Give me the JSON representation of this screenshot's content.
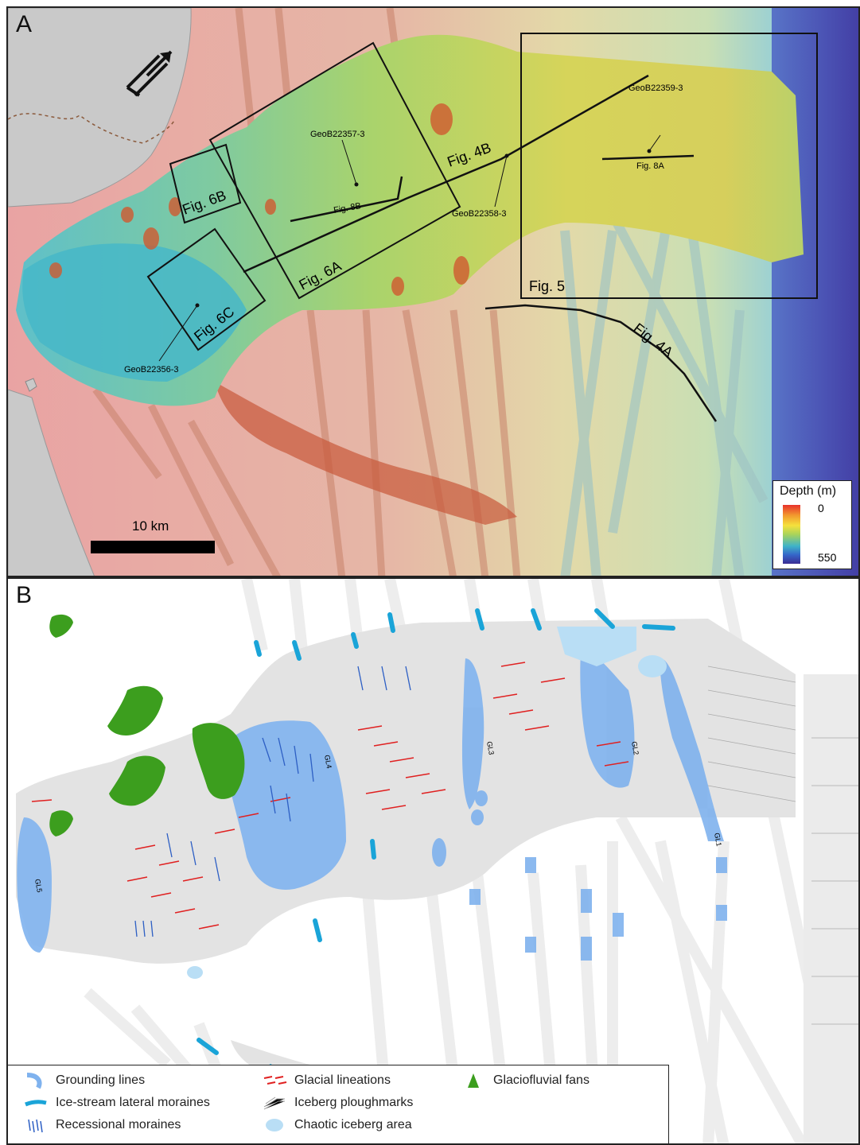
{
  "panelA": {
    "letter": "A",
    "figure_labels": {
      "fig6b": "Fig. 6B",
      "fig6a": "Fig. 6A",
      "fig6c": "Fig. 6C",
      "fig4b": "Fig. 4B",
      "fig5": "Fig. 5",
      "fig4a": "Fig. 4A",
      "fig8a": "Fig. 8A",
      "fig8b": "Fig. 8B"
    },
    "cores": {
      "c1": "GeoB22357-3",
      "c2": "GeoB22359-3",
      "c3": "GeoB22358-3",
      "c4": "GeoB22356-3"
    },
    "scale_label": "10 km",
    "depth_legend": {
      "title": "Depth (m)",
      "min": "0",
      "max": "550",
      "colors": [
        "#e8322c",
        "#f5e13c",
        "#3fb3c8",
        "#3a2d93"
      ]
    }
  },
  "panelB": {
    "letter": "B",
    "gl_labels": {
      "gl1": "GL1",
      "gl2": "GL2",
      "gl3": "GL3",
      "gl4": "GL4",
      "gl5": "GL5"
    },
    "legend": {
      "grounding_lines": "Grounding lines",
      "lateral_moraines": "Ice-stream lateral moraines",
      "recessional_moraines": "Recessional moraines",
      "glacial_lineations": "Glacial lineations",
      "iceberg_ploughmarks": "Iceberg ploughmarks",
      "chaotic_iceberg": "Chaotic iceberg area",
      "glaciofluvial_fans": "Glaciofluvial fans"
    },
    "colors": {
      "grounding": "#7fb2ee",
      "lateral": "#1aa4d8",
      "recessional": "#2d5fc4",
      "lineation": "#e02020",
      "fan": "#3c9e1e",
      "chaotic": "#b9def5",
      "trough": "#e3e3e3"
    }
  }
}
